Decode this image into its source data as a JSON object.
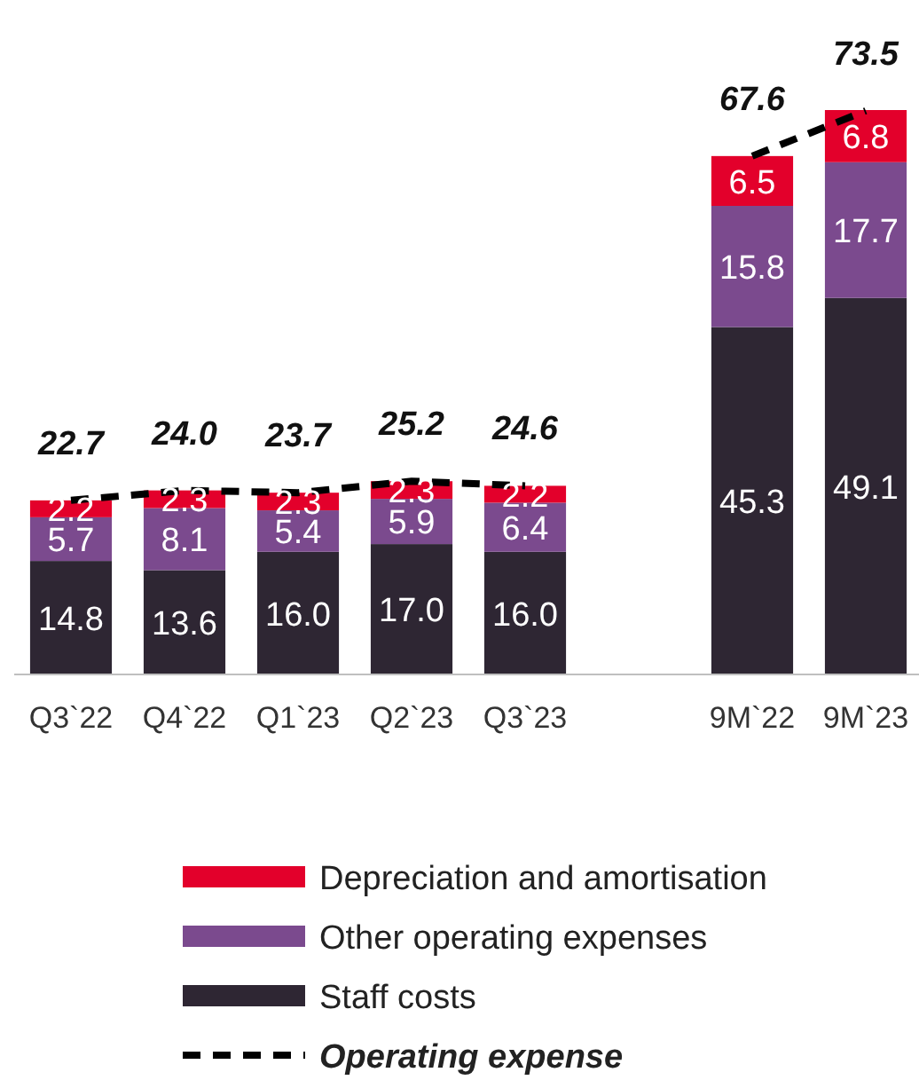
{
  "chart_data": {
    "type": "bar",
    "stacked": true,
    "tick_labels": "x",
    "legend": "bottom",
    "categories": [
      "Q3`22",
      "Q4`22",
      "Q1`23",
      "Q2`23",
      "Q3`23",
      null,
      "9M`22",
      "9M`23"
    ],
    "series": [
      {
        "name": "Staff costs",
        "color": "#2e2633",
        "values": [
          14.8,
          13.6,
          16.0,
          17.0,
          16.0,
          null,
          45.3,
          49.1
        ],
        "value_labels": [
          "14.8",
          "13.6",
          "16.0",
          "17.0",
          "16.0",
          null,
          "45.3",
          "49.1"
        ]
      },
      {
        "name": "Other operating expenses",
        "color": "#7b4a8e",
        "values": [
          5.7,
          8.1,
          5.4,
          5.9,
          6.4,
          null,
          15.8,
          17.7
        ],
        "value_labels": [
          "5.7",
          "8.1",
          "5.4",
          "5.9",
          "6.4",
          null,
          "15.8",
          "17.7"
        ]
      },
      {
        "name": "Depreciation and amortisation",
        "color": "#e3002b",
        "values": [
          2.2,
          2.3,
          2.3,
          2.3,
          2.2,
          null,
          6.5,
          6.8
        ],
        "value_labels": [
          "2.2",
          "2.3",
          "2.3",
          "2.3",
          "2.2",
          null,
          "6.5",
          "6.8"
        ]
      },
      {
        "name": "Operating expense",
        "type": "line",
        "color": "#000000",
        "line_style": "dashed",
        "marker": "none",
        "values": [
          22.7,
          24.0,
          23.7,
          25.2,
          24.6,
          null,
          67.6,
          73.5
        ],
        "value_labels": [
          "22.7",
          "24.0",
          "23.7",
          "25.2",
          "24.6",
          null,
          "67.6",
          "73.5"
        ]
      }
    ]
  }
}
